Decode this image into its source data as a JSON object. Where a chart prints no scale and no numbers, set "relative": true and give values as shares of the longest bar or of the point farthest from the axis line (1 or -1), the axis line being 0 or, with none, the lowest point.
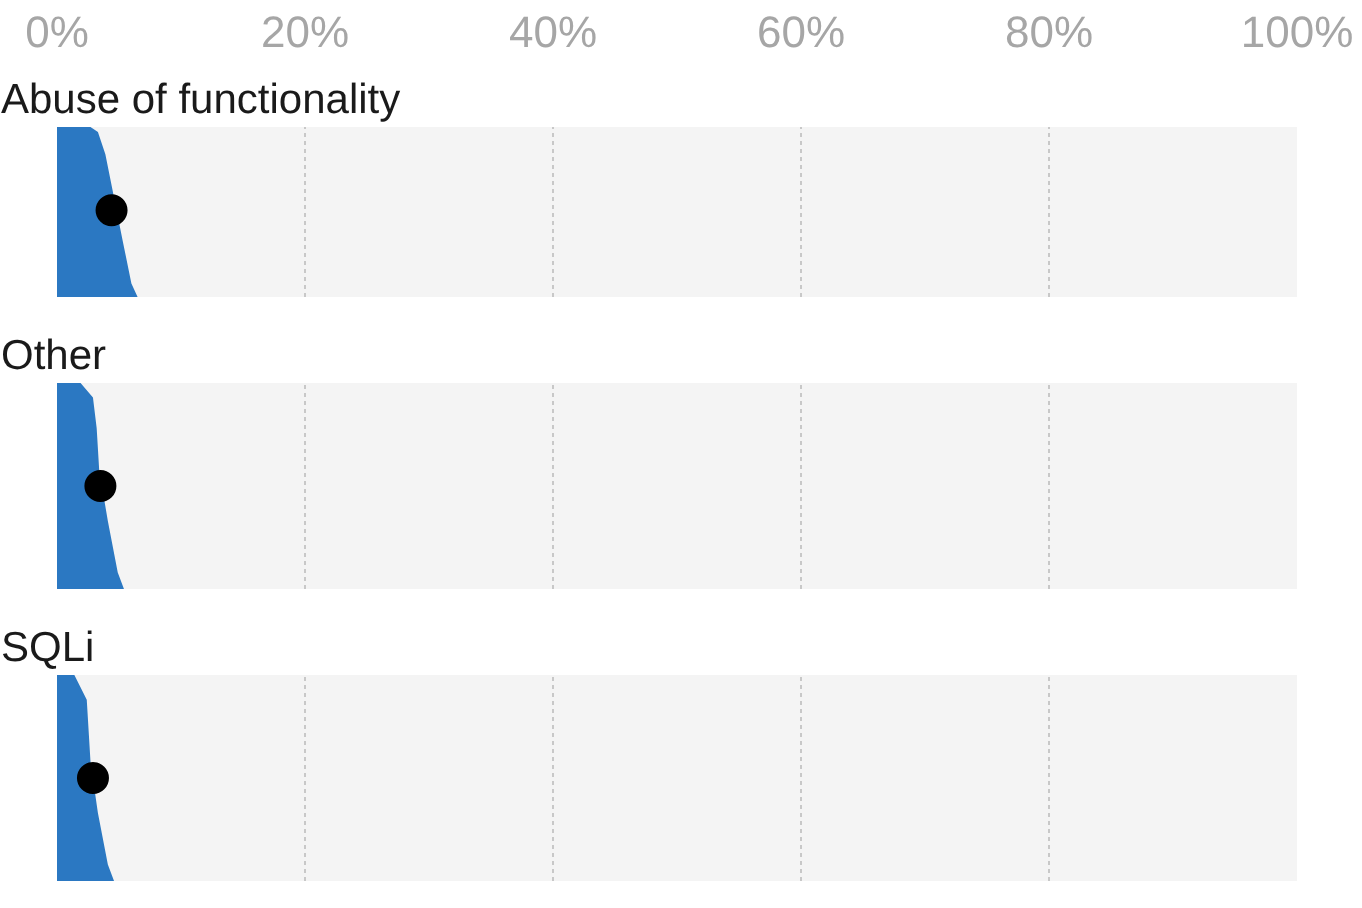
{
  "chart_data": [
    {
      "type": "area",
      "title": "Abuse of functionality",
      "relative": true,
      "xlim": [
        0,
        100
      ],
      "xticks": [
        {
          "value": 0,
          "label": "0%"
        },
        {
          "value": 20,
          "label": "20%"
        },
        {
          "value": 40,
          "label": "40%"
        },
        {
          "value": 60,
          "label": "60%"
        },
        {
          "value": 80,
          "label": "80%"
        },
        {
          "value": 100,
          "label": "100%"
        }
      ],
      "tick_labels": "x",
      "grid": "x",
      "series": [
        {
          "color": "#2b78c2",
          "x": [
            0,
            2.7,
            3.3,
            3.9,
            5.3,
            6.0,
            6.5
          ],
          "values": [
            1,
            1,
            0.97,
            0.84,
            0.33,
            0.08,
            0
          ]
        },
        {
          "type": "scatter",
          "color": "#000000",
          "x": [
            4.4
          ],
          "values": [
            0.51
          ]
        }
      ]
    },
    {
      "type": "area",
      "title": "Other",
      "relative": true,
      "xlim": [
        0,
        100
      ],
      "xticks": [
        0,
        20,
        40,
        60,
        80,
        100
      ],
      "tick_labels": false,
      "grid": "x",
      "series": [
        {
          "color": "#2b78c2",
          "x": [
            0,
            1.9,
            2.9,
            3.2,
            3.4,
            4.1,
            4.9,
            5.4
          ],
          "values": [
            1,
            1,
            0.93,
            0.78,
            0.58,
            0.33,
            0.08,
            0
          ]
        },
        {
          "type": "scatter",
          "color": "#000000",
          "x": [
            3.5
          ],
          "values": [
            0.5
          ]
        }
      ]
    },
    {
      "type": "area",
      "title": "SQLi",
      "relative": true,
      "xlim": [
        0,
        100
      ],
      "xticks": [
        0,
        20,
        40,
        60,
        80,
        100
      ],
      "tick_labels": false,
      "grid": "x",
      "series": [
        {
          "color": "#2b78c2",
          "x": [
            0,
            1.4,
            2.4,
            2.7,
            3.3,
            4.1,
            4.6
          ],
          "values": [
            1,
            1,
            0.88,
            0.58,
            0.33,
            0.08,
            0
          ]
        },
        {
          "type": "scatter",
          "color": "#000000",
          "x": [
            2.9
          ],
          "values": [
            0.5
          ]
        }
      ]
    }
  ]
}
